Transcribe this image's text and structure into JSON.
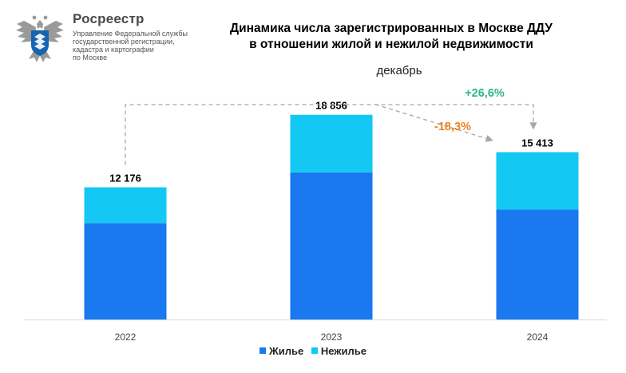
{
  "brand": {
    "name": "Росреестр",
    "subtitle_lines": [
      "Управление Федеральной службы",
      "государственной регистрации,",
      "кадастра и картографии",
      "по Москве"
    ]
  },
  "colors": {
    "residential": "#1a78f0",
    "nonresidential": "#14c8f4",
    "growth": "#2bb880",
    "decline": "#e8821e",
    "arrow": "#a6a6a6"
  },
  "chart_data": {
    "type": "bar",
    "stacked": true,
    "title": "Динамика числа зарегистрированных в Москве ДДУ в отношении жилой и нежилой недвижимости",
    "title_lines": [
      "Динамика числа зарегистрированных в Москве ДДУ",
      "в отношении жилой и нежилой недвижимости"
    ],
    "subtitle": "декабрь",
    "categories": [
      "2022",
      "2023",
      "2024"
    ],
    "totals": [
      12176,
      18856,
      15413
    ],
    "total_labels": [
      "12 176",
      "18 856",
      "15 413"
    ],
    "series": [
      {
        "name": "Жилье",
        "values": [
          8880,
          13550,
          10120
        ]
      },
      {
        "name": "Нежилье",
        "values": [
          3296,
          5306,
          5293
        ]
      }
    ],
    "ylim": [
      0,
      22000
    ],
    "grid": false,
    "legend_position": "bottom",
    "annotations": [
      {
        "text": "+26,6%",
        "from": "2022",
        "to": "2024",
        "kind": "growth"
      },
      {
        "text": "-18,3%",
        "from": "2023",
        "to": "2024",
        "kind": "decline"
      }
    ]
  }
}
